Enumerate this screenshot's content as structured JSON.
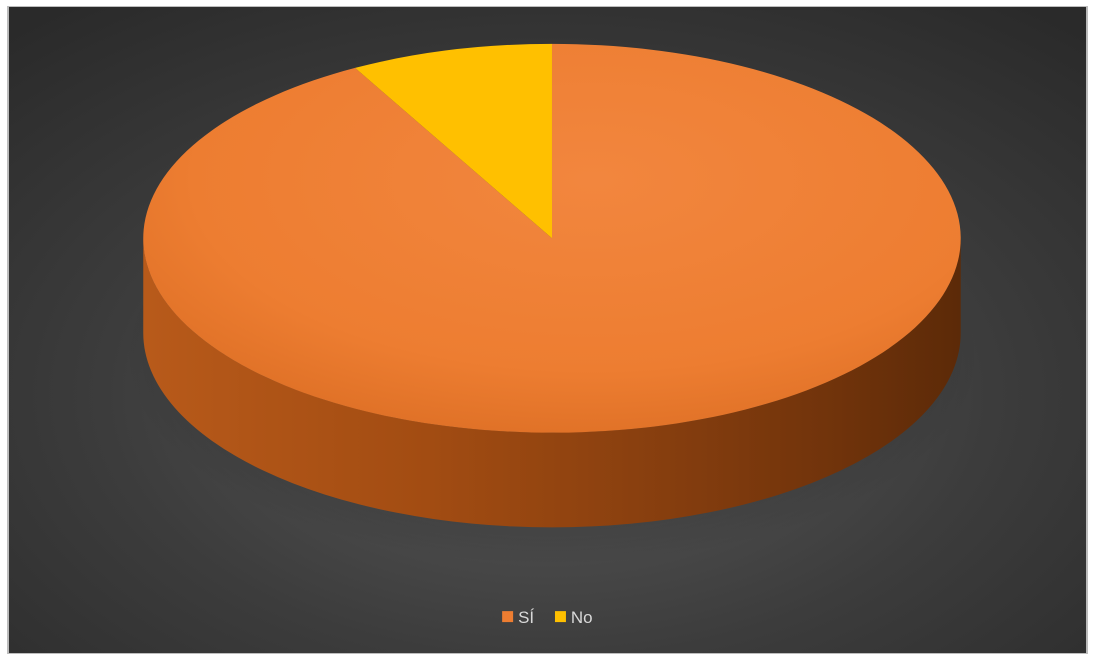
{
  "chart_data": {
    "type": "pie",
    "style": "3d",
    "title": "",
    "categories": [
      "SÍ",
      "No"
    ],
    "values": [
      92,
      8
    ],
    "start_angle_deg": 0,
    "direction": "clockwise",
    "legend_position": "bottom",
    "colors": {
      "SÍ": "#ED7D31",
      "No": "#FFC000"
    },
    "background": "dark-radial"
  }
}
